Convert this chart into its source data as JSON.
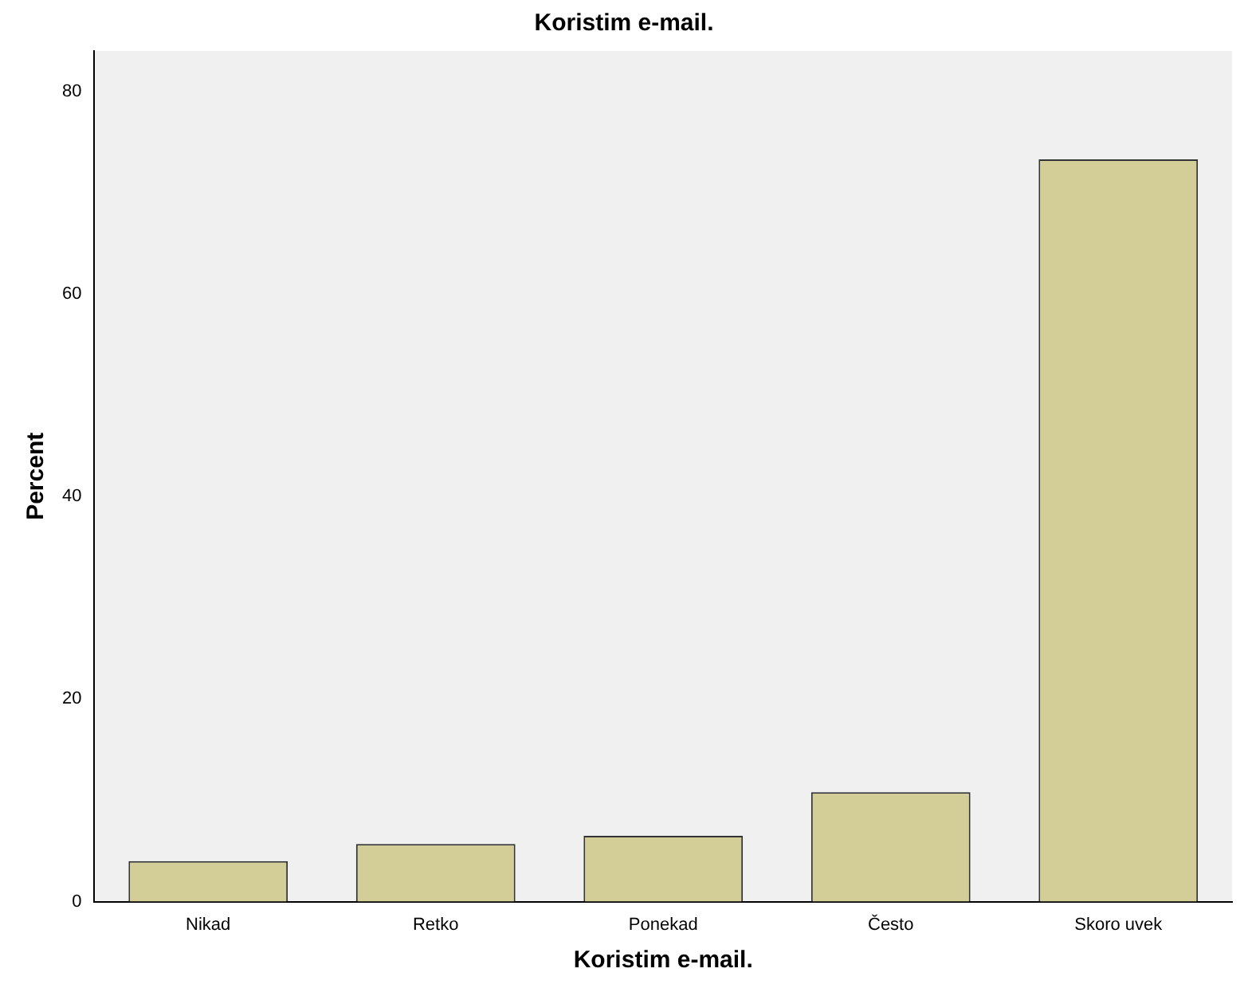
{
  "chart_data": {
    "type": "bar",
    "title": "Koristim e-mail.",
    "xlabel": "Koristim e-mail.",
    "ylabel": "Percent",
    "categories": [
      "Nikad",
      "Retko",
      "Ponekad",
      "Često",
      "Skoro uvek"
    ],
    "values": [
      4.0,
      5.7,
      6.5,
      10.8,
      73.3
    ],
    "color": "#d3ce97",
    "ylim": [
      0,
      84
    ],
    "yticks": [
      0,
      20,
      40,
      60,
      80
    ],
    "grid": false,
    "legend": false
  }
}
